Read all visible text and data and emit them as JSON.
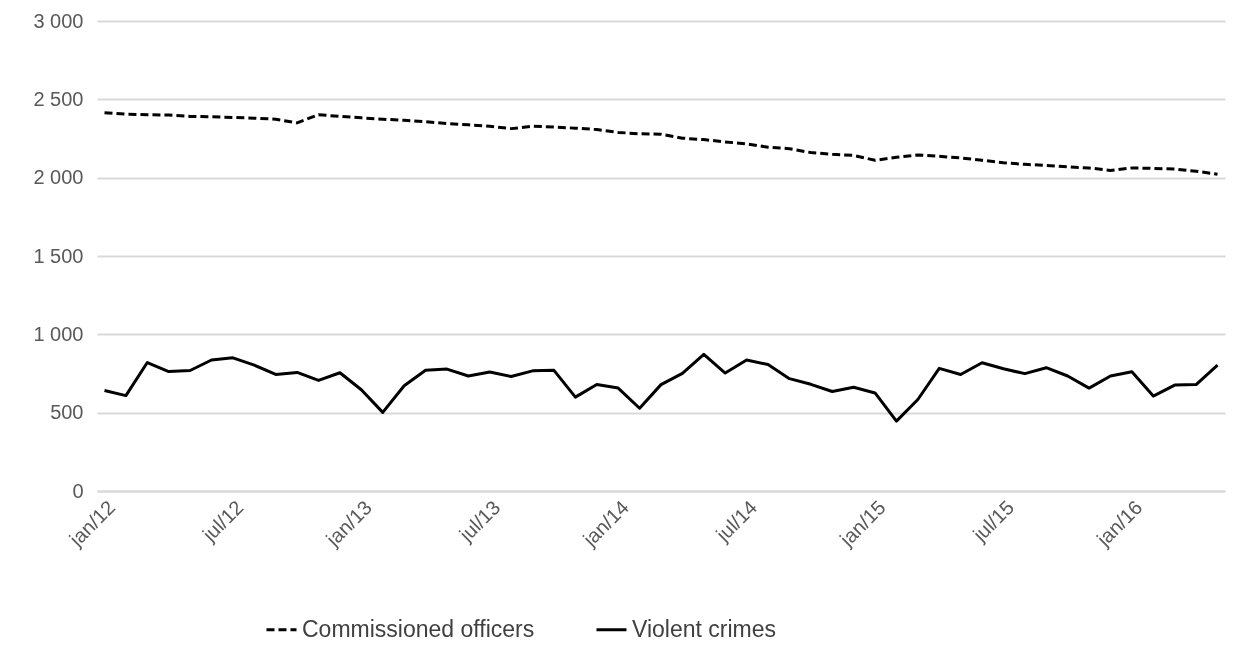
{
  "chart_data": {
    "type": "line",
    "categories": [
      "jan/12",
      null,
      null,
      null,
      null,
      null,
      "jul/12",
      null,
      null,
      null,
      null,
      null,
      "jan/13",
      null,
      null,
      null,
      null,
      null,
      "jul/13",
      null,
      null,
      null,
      null,
      null,
      "jan/14",
      null,
      null,
      null,
      null,
      null,
      "jul/14",
      null,
      null,
      null,
      null,
      null,
      "jan/15",
      null,
      null,
      null,
      null,
      null,
      "jul/15",
      null,
      null,
      null,
      null,
      null,
      "jan/16",
      null,
      null,
      null,
      null
    ],
    "series": [
      {
        "name": "Commissioned officers",
        "color": "#000000",
        "line_style": "dashed",
        "values": [
          2415,
          2405,
          2402,
          2400,
          2391,
          2389,
          2384,
          2380,
          2373,
          2350,
          2402,
          2391,
          2382,
          2373,
          2366,
          2357,
          2346,
          2337,
          2328,
          2313,
          2328,
          2323,
          2316,
          2307,
          2289,
          2280,
          2277,
          2252,
          2243,
          2228,
          2216,
          2194,
          2185,
          2160,
          2149,
          2142,
          2111,
          2130,
          2145,
          2136,
          2126,
          2111,
          2095,
          2085,
          2078,
          2069,
          2062,
          2046,
          2062,
          2059,
          2055,
          2041,
          2022
        ]
      },
      {
        "name": "Violent crimes",
        "color": "#000000",
        "line_style": "solid",
        "values": [
          641,
          609,
          820,
          762,
          769,
          836,
          850,
          803,
          744,
          757,
          706,
          755,
          646,
          502,
          672,
          771,
          778,
          734,
          760,
          731,
          767,
          770,
          599,
          680,
          657,
          528,
          679,
          751,
          872,
          753,
          836,
          807,
          717,
          681,
          635,
          662,
          626,
          446,
          584,
          783,
          744,
          819,
          780,
          749,
          787,
          734,
          657,
          734,
          761,
          606,
          676,
          679,
          804
        ]
      }
    ],
    "ylim": [
      0,
      3000
    ],
    "yticks": [
      {
        "value": 0,
        "label": "0"
      },
      {
        "value": 500,
        "label": "500"
      },
      {
        "value": 1000,
        "label": "1 000"
      },
      {
        "value": 1500,
        "label": "1 500"
      },
      {
        "value": 2000,
        "label": "2 000"
      },
      {
        "value": 2500,
        "label": "2 500"
      },
      {
        "value": 3000,
        "label": "3 000"
      }
    ],
    "grid": "y",
    "legend": "bottom"
  }
}
